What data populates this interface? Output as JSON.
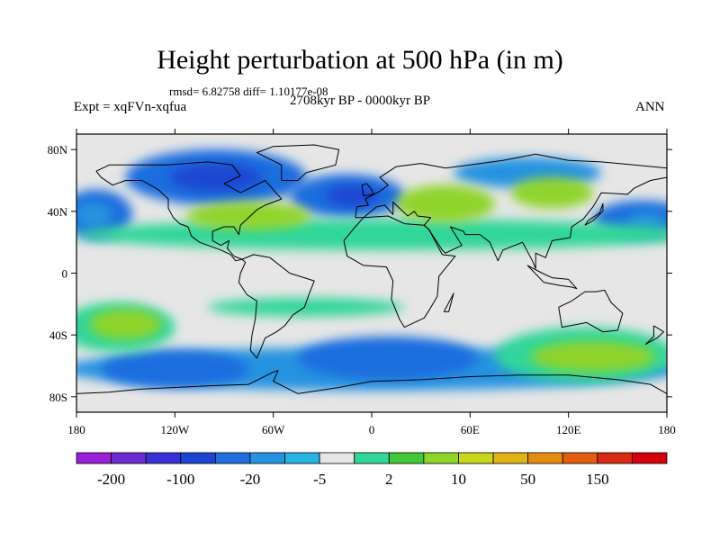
{
  "title": "Height perturbation at 500 hPa (in m)",
  "stats": "rmsd= 6.82758 diff= 1.10177e-08",
  "experiment": "Expt = xqFVn-xqfua",
  "period": "2708kyr BP - 0000kyr BP",
  "season": "ANN",
  "map": {
    "lat_ticks": [
      {
        "label": "80N",
        "lat": 80
      },
      {
        "label": "40N",
        "lat": 40
      },
      {
        "label": "0",
        "lat": 0
      },
      {
        "label": "40S",
        "lat": -40
      },
      {
        "label": "80S",
        "lat": -80
      }
    ],
    "lon_ticks": [
      {
        "label": "180",
        "lon": -180
      },
      {
        "label": "120W",
        "lon": -120
      },
      {
        "label": "60W",
        "lon": -60
      },
      {
        "label": "0",
        "lon": 0
      },
      {
        "label": "60E",
        "lon": 60
      },
      {
        "label": "120E",
        "lon": 120
      },
      {
        "label": "180",
        "lon": 180
      }
    ],
    "lat_range": [
      -90,
      90
    ],
    "lon_range": [
      -180,
      180
    ],
    "background_color": "#e6e6e6",
    "fields": [
      {
        "name": "n-pacific-low",
        "lon": -168,
        "lat": 38,
        "rlon": 22,
        "rlat": 16,
        "class": "neg-20"
      },
      {
        "name": "n-pacific-low-core",
        "lon": -170,
        "lat": 38,
        "rlon": 12,
        "rlat": 8,
        "class": "neg-5"
      },
      {
        "name": "arctic-canada-low",
        "lon": -95,
        "lat": 62,
        "rlon": 55,
        "rlat": 18,
        "class": "neg-20"
      },
      {
        "name": "hudson-low-core",
        "lon": -95,
        "lat": 62,
        "rlon": 28,
        "rlat": 9,
        "class": "neg-100"
      },
      {
        "name": "n-atlantic-low",
        "lon": -15,
        "lat": 50,
        "rlon": 35,
        "rlat": 14,
        "class": "neg-20"
      },
      {
        "name": "n-atlantic-low-core",
        "lon": -12,
        "lat": 50,
        "rlon": 16,
        "rlat": 7,
        "class": "neg-100"
      },
      {
        "name": "w-pacific-low",
        "lon": 165,
        "lat": 35,
        "rlon": 30,
        "rlat": 12,
        "class": "neg-20"
      },
      {
        "name": "w-pacific-low-core",
        "lon": 168,
        "lat": 34,
        "rlon": 12,
        "rlat": 6,
        "class": "neg-5"
      },
      {
        "name": "siberia-low",
        "lon": 95,
        "lat": 65,
        "rlon": 45,
        "rlat": 10,
        "class": "neg-5"
      },
      {
        "name": "n-hemi-high-band",
        "lon": 10,
        "lat": 25,
        "rlon": 190,
        "rlat": 10,
        "class": "pos-2"
      },
      {
        "name": "n-america-high",
        "lon": -75,
        "lat": 37,
        "rlon": 38,
        "rlat": 9,
        "class": "pos-10"
      },
      {
        "name": "europe-high",
        "lon": 45,
        "lat": 45,
        "rlon": 30,
        "rlat": 12,
        "class": "pos-10"
      },
      {
        "name": "e-asia-high",
        "lon": 110,
        "lat": 52,
        "rlon": 25,
        "rlat": 10,
        "class": "pos-10"
      },
      {
        "name": "s-hemi-neg-band",
        "lon": 0,
        "lat": -62,
        "rlon": 190,
        "rlat": 14,
        "class": "neg-5"
      },
      {
        "name": "s-atlantic-low",
        "lon": 10,
        "lat": -55,
        "rlon": 55,
        "rlat": 14,
        "class": "neg-20"
      },
      {
        "name": "s-pacific-low",
        "lon": -120,
        "lat": -62,
        "rlon": 45,
        "rlat": 12,
        "class": "neg-20"
      },
      {
        "name": "s-pacific-high",
        "lon": -155,
        "lat": -35,
        "rlon": 35,
        "rlat": 16,
        "class": "pos-2"
      },
      {
        "name": "s-pacific-high-core",
        "lon": -150,
        "lat": -33,
        "rlon": 22,
        "rlat": 10,
        "class": "pos-10"
      },
      {
        "name": "s-indian-high",
        "lon": 130,
        "lat": -53,
        "rlon": 55,
        "rlat": 18,
        "class": "pos-2"
      },
      {
        "name": "s-indian-high-core",
        "lon": 135,
        "lat": -54,
        "rlon": 38,
        "rlat": 10,
        "class": "pos-10"
      },
      {
        "name": "tropical-pos-band",
        "lon": -40,
        "lat": -22,
        "rlon": 60,
        "rlat": 6,
        "class": "pos-2"
      }
    ]
  },
  "colorbar": {
    "colors": [
      "#9b1fd6",
      "#6b2dcf",
      "#3b2fd6",
      "#1c46d2",
      "#1f6dde",
      "#2693e0",
      "#2ab4e6",
      "#e6e6e6",
      "#33d69a",
      "#42c93a",
      "#8fd42c",
      "#c8d61c",
      "#dfb414",
      "#e58b10",
      "#e15d10",
      "#d92a12",
      "#d6000c"
    ],
    "labels": [
      "-200",
      "-100",
      "-20",
      "-5",
      "2",
      "10",
      "50",
      "150"
    ],
    "class_colors": {
      "neg-100": "#1c46d2",
      "neg-20": "#1f6dde",
      "neg-5": "#2693e0",
      "neg-2": "#2ab4e6",
      "pos-2": "#33d69a",
      "pos-10": "#8fd42c"
    }
  }
}
